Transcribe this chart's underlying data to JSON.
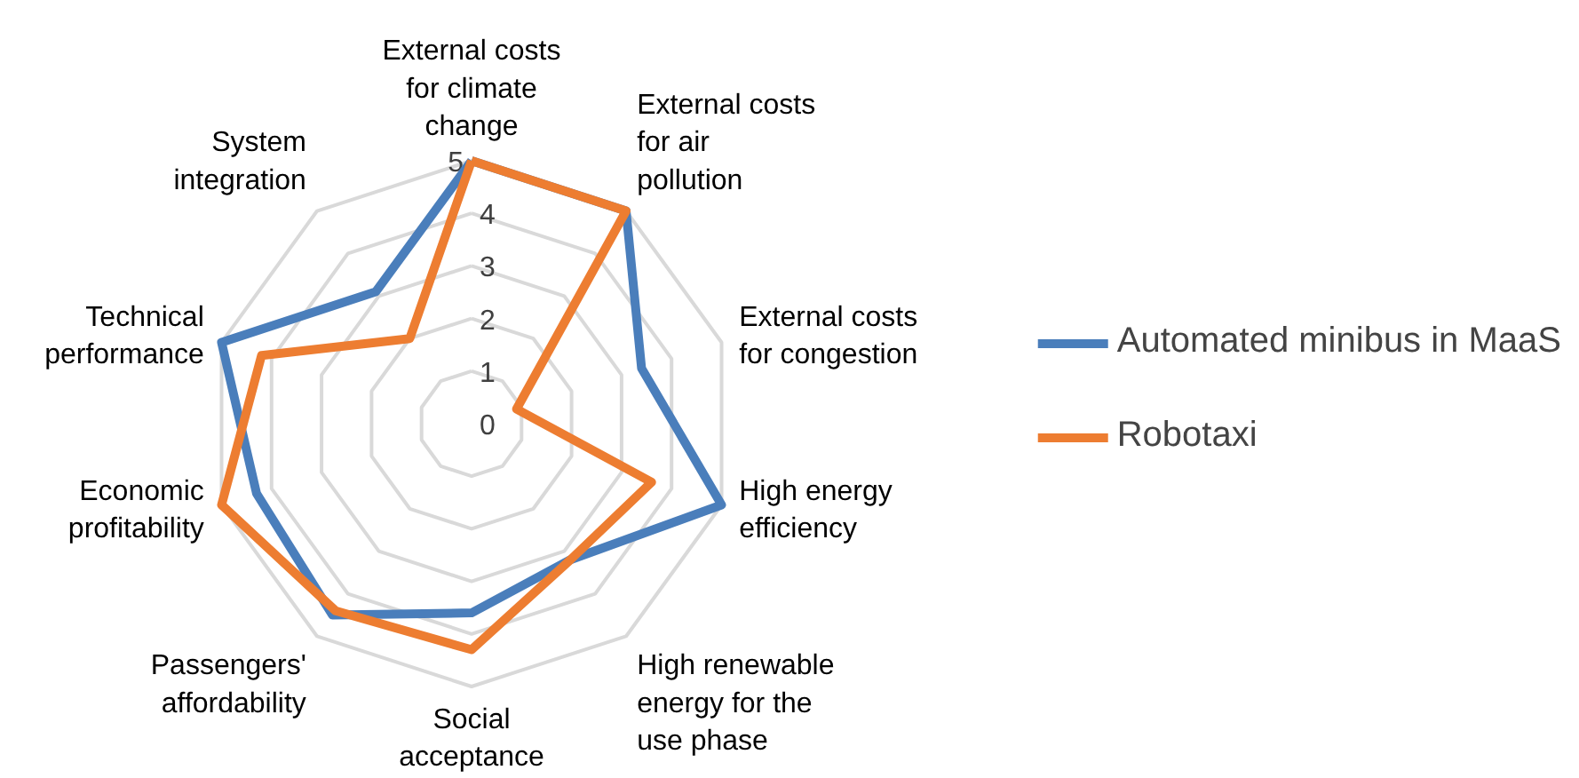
{
  "chart_data": {
    "type": "radar",
    "categories": [
      "External costs for climate change",
      "External costs for air pollution",
      "External costs for congestion",
      "High energy efficiency",
      "High renewable energy for the use phase",
      "Social acceptance",
      "Passengers' affordability",
      "Economic profitability",
      "Technical performance",
      "System integration"
    ],
    "series": [
      {
        "name": "Automated minibus in MaaS",
        "color": "#4a7ebb",
        "values": [
          5,
          5,
          3.4,
          5,
          3.2,
          3.6,
          4.5,
          4.3,
          5,
          3.1
        ]
      },
      {
        "name": "Robotaxi",
        "color": "#ed7d31",
        "values": [
          5,
          5,
          0.9,
          3.6,
          3.2,
          4.3,
          4.4,
          5,
          4.2,
          2
        ]
      }
    ],
    "ylim": [
      0,
      5
    ],
    "yticks": [
      0,
      1,
      2,
      3,
      4,
      5
    ],
    "grid": true,
    "legend": "right",
    "line_style": "solid",
    "marker": "none"
  }
}
